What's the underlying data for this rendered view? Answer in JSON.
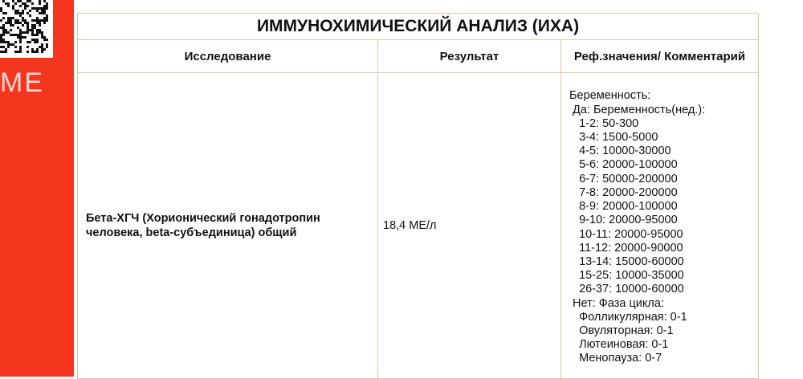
{
  "sidebar": {
    "brand_text": "ME",
    "accent": "#f5361f",
    "icon": "qr-code"
  },
  "table": {
    "title": "ИММУНОХИМИЧЕСКИЙ АНАЛИЗ (ИХА)",
    "headers": [
      "Исследование",
      "Результат",
      "Реф.значения/ Комментарий"
    ],
    "rows": [
      {
        "test": "Бета-ХГЧ (Хорионический гонадотропин человека, beta-субъединица) общий",
        "result": "18,4 МЕ/л",
        "reference": [
          "Беременность:",
          " Да: Беременность(нед.):",
          "   1-2: 50-300",
          "   3-4: 1500-5000",
          "   4-5: 10000-30000",
          "   5-6: 20000-100000",
          "   6-7: 50000-200000",
          "   7-8: 20000-200000",
          "   8-9: 20000-100000",
          "   9-10: 20000-95000",
          "   10-11: 20000-95000",
          "   11-12: 20000-90000",
          "   13-14: 15000-60000",
          "   15-25: 10000-35000",
          "   26-37: 10000-60000",
          " Нет: Фаза цикла:",
          "   Фолликулярная: 0-1",
          "   Овуляторная: 0-1",
          "   Лютеиновая: 0-1",
          "   Менопауза: 0-7"
        ]
      }
    ]
  }
}
